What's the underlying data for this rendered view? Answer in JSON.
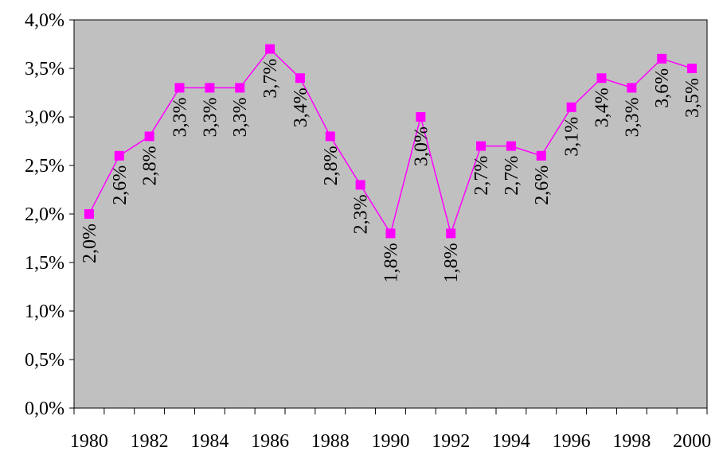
{
  "chart_data": {
    "type": "line",
    "title": "",
    "xlabel": "",
    "ylabel": "",
    "x": [
      1980,
      1981,
      1982,
      1983,
      1984,
      1985,
      1986,
      1987,
      1988,
      1989,
      1990,
      1991,
      1992,
      1993,
      1994,
      1995,
      1996,
      1997,
      1998,
      1999,
      2000
    ],
    "x_tick_labels": [
      "1980",
      "1982",
      "1984",
      "1986",
      "1988",
      "1990",
      "1992",
      "1994",
      "1996",
      "1998",
      "2000"
    ],
    "y_tick_labels": [
      "0,0%",
      "0,5%",
      "1,0%",
      "1,5%",
      "2,0%",
      "2,5%",
      "3,0%",
      "3,5%",
      "4,0%"
    ],
    "ylim": [
      0,
      4
    ],
    "series": [
      {
        "values": [
          2.0,
          2.6,
          2.8,
          3.3,
          3.3,
          3.3,
          3.7,
          3.4,
          2.8,
          2.3,
          1.8,
          3.0,
          1.8,
          2.7,
          2.7,
          2.6,
          3.1,
          3.4,
          3.3,
          3.6,
          3.5
        ],
        "labels": [
          "2,0%",
          "2,6%",
          "2,8%",
          "3,3%",
          "3,3%",
          "3,3%",
          "3,7%",
          "3,4%",
          "2,8%",
          "2,3%",
          "1,8%",
          "3,0%",
          "1,8%",
          "2,7%",
          "2,7%",
          "2,6%",
          "3,1%",
          "3,4%",
          "3,3%",
          "3,6%",
          "3,5%"
        ],
        "color": "#ff00ff"
      }
    ],
    "plot_background": "#c0c0c0",
    "grid": false,
    "legend": "none"
  }
}
